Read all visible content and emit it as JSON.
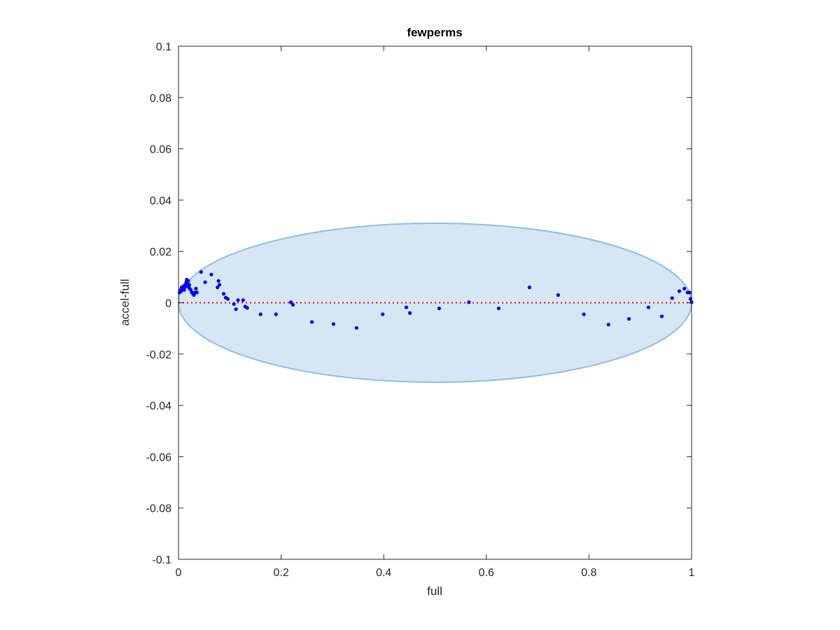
{
  "chart_data": {
    "type": "scatter",
    "title": "fewperms",
    "xlabel": "full",
    "ylabel": "accel-full",
    "xlim": [
      0,
      1
    ],
    "ylim": [
      -0.1,
      0.1
    ],
    "xticks": [
      0,
      0.2,
      0.4,
      0.6,
      0.8,
      1
    ],
    "xtick_labels": [
      "0",
      "0.2",
      "0.4",
      "0.6",
      "0.8",
      "1"
    ],
    "yticks": [
      -0.1,
      -0.08,
      -0.06,
      -0.04,
      -0.02,
      0,
      0.02,
      0.04,
      0.06,
      0.08,
      0.1
    ],
    "ytick_labels": [
      "-0.1",
      "-0.08",
      "-0.06",
      "-0.04",
      "-0.02",
      "0",
      "0.02",
      "0.04",
      "0.06",
      "0.08",
      "0.1"
    ],
    "grid": false,
    "reference_line": {
      "y": 0,
      "style": "dotted",
      "color": "#ff0000"
    },
    "ellipse": {
      "cx": 0.5,
      "cy": 0,
      "rx": 0.5,
      "ry": 0.031,
      "fill": "#d6e6f4",
      "stroke": "#8fbfe0"
    },
    "series": [
      {
        "color": "#0000ee",
        "x": [
          0.002,
          0.004,
          0.005,
          0.006,
          0.007,
          0.008,
          0.009,
          0.01,
          0.011,
          0.012,
          0.013,
          0.014,
          0.015,
          0.016,
          0.017,
          0.018,
          0.019,
          0.02,
          0.021,
          0.022,
          0.024,
          0.026,
          0.028,
          0.03,
          0.032,
          0.034,
          0.036,
          0.044,
          0.052,
          0.064,
          0.076,
          0.078,
          0.08,
          0.088,
          0.092,
          0.096,
          0.108,
          0.112,
          0.116,
          0.126,
          0.13,
          0.134,
          0.16,
          0.19,
          0.219,
          0.223,
          0.26,
          0.302,
          0.347,
          0.398,
          0.444,
          0.451,
          0.508,
          0.566,
          0.624,
          0.684,
          0.74,
          0.79,
          0.838,
          0.878,
          0.916,
          0.942,
          0.962,
          0.976,
          0.986,
          0.992,
          0.996,
          0.998,
          1.0
        ],
        "y": [
          0.004,
          0.005,
          0.0045,
          0.006,
          0.005,
          0.0055,
          0.006,
          0.0065,
          0.005,
          0.006,
          0.007,
          0.0065,
          0.008,
          0.009,
          0.0075,
          0.007,
          0.0085,
          0.006,
          0.007,
          0.0055,
          0.005,
          0.004,
          0.0035,
          0.003,
          0.004,
          0.0055,
          0.004,
          0.012,
          0.008,
          0.011,
          0.006,
          0.0085,
          0.007,
          0.0035,
          0.002,
          0.0015,
          -0.0005,
          -0.0025,
          0.001,
          0.001,
          -0.0015,
          -0.002,
          -0.0045,
          -0.0045,
          0.0002,
          -0.0008,
          -0.0075,
          -0.0083,
          -0.0098,
          -0.0045,
          -0.0018,
          -0.004,
          -0.0022,
          0.0002,
          -0.0022,
          0.006,
          0.003,
          -0.0045,
          -0.0085,
          -0.0063,
          -0.0018,
          -0.0053,
          0.0018,
          0.0045,
          0.0055,
          0.004,
          0.004,
          0.0015,
          0.0002
        ]
      }
    ]
  }
}
